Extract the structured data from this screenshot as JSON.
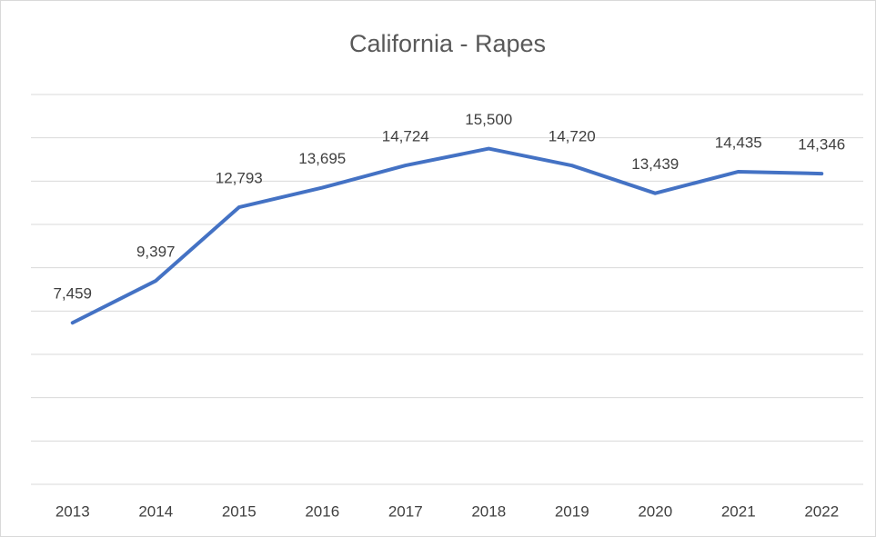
{
  "chart_data": {
    "type": "line",
    "title": "California - Rapes",
    "categories": [
      "2013",
      "2014",
      "2015",
      "2016",
      "2017",
      "2018",
      "2019",
      "2020",
      "2021",
      "2022"
    ],
    "series": [
      {
        "name": "Rapes",
        "color": "#4472c4",
        "values": [
          7459,
          9397,
          12793,
          13695,
          14724,
          15500,
          14720,
          13439,
          14435,
          14346
        ],
        "value_labels": [
          "7,459",
          "9,397",
          "12,793",
          "13,695",
          "14,724",
          "15,500",
          "14,720",
          "13,439",
          "14,435",
          "14,346"
        ]
      }
    ],
    "ylim": [
      0,
      18000
    ],
    "yticks": [
      0,
      2000,
      4000,
      6000,
      8000,
      10000,
      12000,
      14000,
      16000,
      18000
    ],
    "grid": true
  }
}
